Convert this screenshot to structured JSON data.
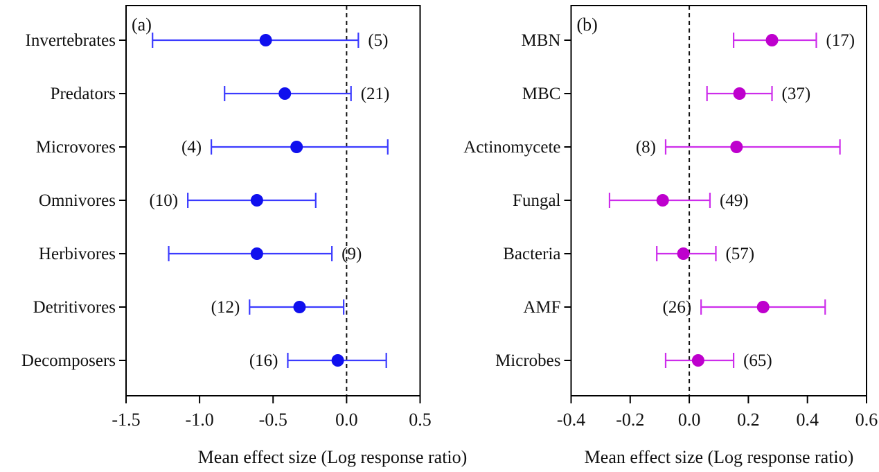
{
  "figure": {
    "background": "#ffffff",
    "axis_color": "#000000",
    "text_color": "#111111",
    "xlabel": "Mean effect size (Log response ratio)"
  },
  "chart_data": [
    {
      "type": "scatter",
      "variant": "forest-plot",
      "panel_label": "(a)",
      "xlabel": "Mean effect size (Log response ratio)",
      "xlim": [
        -1.5,
        0.5
      ],
      "xtick_values": [
        -1.5,
        -1.0,
        -0.5,
        0.0,
        0.5
      ],
      "xtick_labels": [
        "-1.5",
        "-1.0",
        "-0.5",
        "0.0",
        "0.5"
      ],
      "reference_line_x": 0.0,
      "grid": false,
      "legend": "none",
      "point_color": "#1010EE",
      "bar_color": "#3B3BFF",
      "categories": [
        "Invertebrates",
        "Predators",
        "Microvores",
        "Omnivores",
        "Herbivores",
        "Detritivores",
        "Decomposers"
      ],
      "rows": [
        {
          "category": "Invertebrates",
          "mean": -0.55,
          "ci_low": -1.32,
          "ci_high": 0.08,
          "n": 5,
          "count_label": "(5)",
          "count_side": "right"
        },
        {
          "category": "Predators",
          "mean": -0.42,
          "ci_low": -0.83,
          "ci_high": 0.03,
          "n": 21,
          "count_label": "(21)",
          "count_side": "right"
        },
        {
          "category": "Microvores",
          "mean": -0.34,
          "ci_low": -0.92,
          "ci_high": 0.28,
          "n": 4,
          "count_label": "(4)",
          "count_side": "left"
        },
        {
          "category": "Omnivores",
          "mean": -0.61,
          "ci_low": -1.08,
          "ci_high": -0.21,
          "n": 10,
          "count_label": "(10)",
          "count_side": "left"
        },
        {
          "category": "Herbivores",
          "mean": -0.61,
          "ci_low": -1.21,
          "ci_high": -0.1,
          "n": 9,
          "count_label": "(9)",
          "count_side": "right"
        },
        {
          "category": "Detritivores",
          "mean": -0.32,
          "ci_low": -0.66,
          "ci_high": -0.02,
          "n": 12,
          "count_label": "(12)",
          "count_side": "left"
        },
        {
          "category": "Decomposers",
          "mean": -0.06,
          "ci_low": -0.4,
          "ci_high": 0.27,
          "n": 16,
          "count_label": "(16)",
          "count_side": "left"
        }
      ]
    },
    {
      "type": "scatter",
      "variant": "forest-plot",
      "panel_label": "(b)",
      "xlabel": "Mean effect size (Log response ratio)",
      "xlim": [
        -0.4,
        0.6
      ],
      "xtick_values": [
        -0.4,
        -0.2,
        0.0,
        0.2,
        0.4,
        0.6
      ],
      "xtick_labels": [
        "-0.4",
        "-0.2",
        "0.0",
        "0.2",
        "0.4",
        "0.6"
      ],
      "reference_line_x": 0.0,
      "grid": false,
      "legend": "none",
      "point_color": "#BE00CD",
      "bar_color": "#CD2DEB",
      "categories": [
        "MBN",
        "MBC",
        "Actinomycete",
        "Fungal",
        "Bacteria",
        "AMF",
        "Microbes"
      ],
      "rows": [
        {
          "category": "MBN",
          "mean": 0.28,
          "ci_low": 0.15,
          "ci_high": 0.43,
          "n": 17,
          "count_label": "(17)",
          "count_side": "right"
        },
        {
          "category": "MBC",
          "mean": 0.17,
          "ci_low": 0.06,
          "ci_high": 0.28,
          "n": 37,
          "count_label": "(37)",
          "count_side": "right"
        },
        {
          "category": "Actinomycete",
          "mean": 0.16,
          "ci_low": -0.08,
          "ci_high": 0.51,
          "n": 8,
          "count_label": "(8)",
          "count_side": "left"
        },
        {
          "category": "Fungal",
          "mean": -0.09,
          "ci_low": -0.27,
          "ci_high": 0.07,
          "n": 49,
          "count_label": "(49)",
          "count_side": "right"
        },
        {
          "category": "Bacteria",
          "mean": -0.02,
          "ci_low": -0.11,
          "ci_high": 0.09,
          "n": 57,
          "count_label": "(57)",
          "count_side": "right"
        },
        {
          "category": "AMF",
          "mean": 0.25,
          "ci_low": 0.04,
          "ci_high": 0.46,
          "n": 26,
          "count_label": "(26)",
          "count_side": "left"
        },
        {
          "category": "Microbes",
          "mean": 0.03,
          "ci_low": -0.08,
          "ci_high": 0.15,
          "n": 65,
          "count_label": "(65)",
          "count_side": "right"
        }
      ]
    }
  ]
}
